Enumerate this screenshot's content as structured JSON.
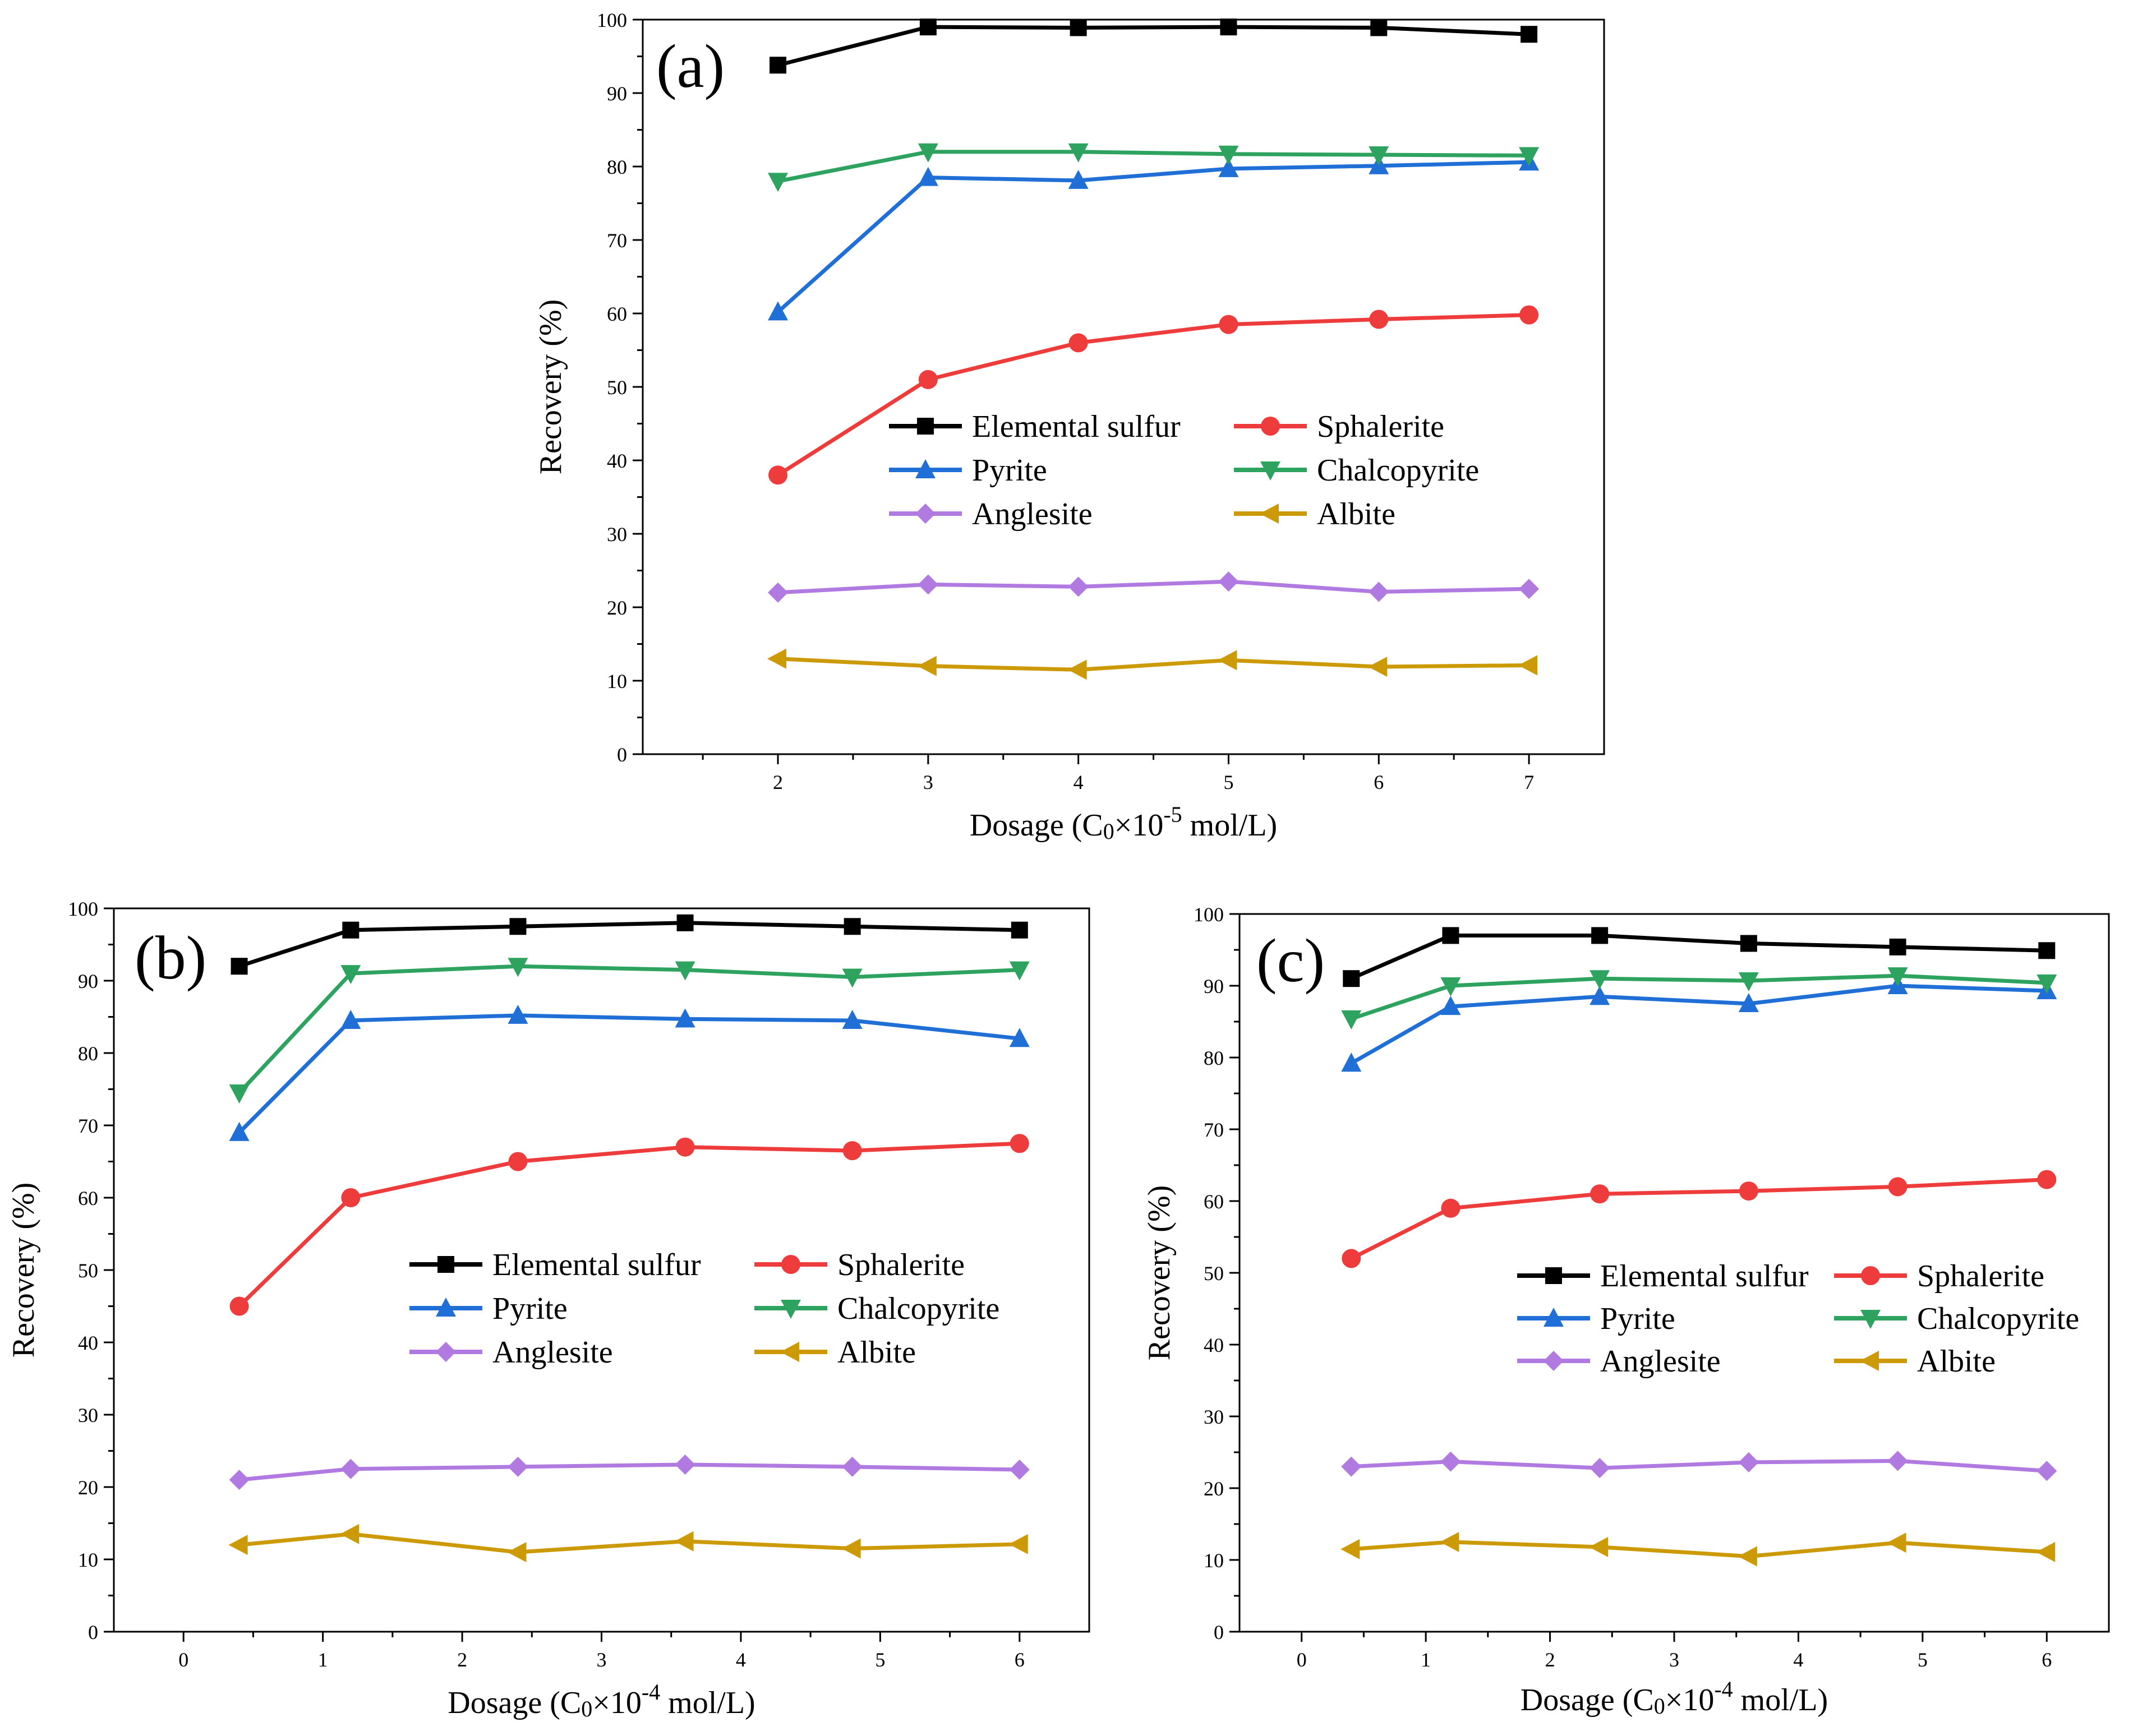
{
  "chart_data": [
    {
      "type": "line",
      "panel_label": "(a)",
      "xlabel": "Dosage (C0×10-5 mol/L)",
      "xlabel_parts": {
        "pre": "Dosage (C",
        "sub": "0",
        "mid": "×10",
        "sup": "-5",
        "post": " mol/L)"
      },
      "ylabel": "Recovery (%)",
      "xlim": [
        1.1,
        7.5
      ],
      "ylim": [
        0,
        100
      ],
      "xticks": [
        2,
        3,
        4,
        5,
        6,
        7
      ],
      "yticks": [
        0,
        10,
        20,
        30,
        40,
        50,
        60,
        70,
        80,
        90,
        100
      ],
      "x": [
        2,
        3,
        4,
        5,
        6,
        7
      ],
      "legend": "center",
      "grid": false,
      "series": [
        {
          "name": "Elemental sulfur",
          "marker": "square",
          "color": "#000000",
          "values": [
            93.8,
            99.0,
            98.9,
            99.0,
            98.9,
            98.0
          ]
        },
        {
          "name": "Sphalerite",
          "marker": "circle",
          "color": "#ee3b3b",
          "values": [
            38.0,
            51.0,
            56.0,
            58.5,
            59.2,
            59.8
          ]
        },
        {
          "name": "Pyrite",
          "marker": "triangle-up",
          "color": "#1f6fd6",
          "values": [
            60.2,
            78.5,
            78.1,
            79.7,
            80.1,
            80.6
          ]
        },
        {
          "name": "Chalcopyrite",
          "marker": "triangle-down",
          "color": "#2ea35f",
          "values": [
            78.0,
            82.0,
            82.0,
            81.7,
            81.6,
            81.5
          ]
        },
        {
          "name": "Anglesite",
          "marker": "diamond",
          "color": "#b07ae0",
          "values": [
            22.0,
            23.1,
            22.8,
            23.5,
            22.1,
            22.5
          ]
        },
        {
          "name": "Albite",
          "marker": "triangle-left",
          "color": "#cc9a06",
          "values": [
            13.0,
            12.0,
            11.5,
            12.8,
            11.9,
            12.1
          ]
        }
      ]
    },
    {
      "type": "line",
      "panel_label": "(b)",
      "xlabel": "Dosage (C0×10-4 mol/L)",
      "xlabel_parts": {
        "pre": "Dosage (C",
        "sub": "0",
        "mid": "×10",
        "sup": "-4",
        "post": " mol/L)"
      },
      "ylabel": "Recovery (%)",
      "xlim": [
        -0.5,
        6.5
      ],
      "ylim": [
        0,
        100
      ],
      "xticks": [
        0,
        1,
        2,
        3,
        4,
        5,
        6
      ],
      "yticks": [
        0,
        10,
        20,
        30,
        40,
        50,
        60,
        70,
        80,
        90,
        100
      ],
      "x": [
        0.4,
        1.2,
        2.4,
        3.6,
        4.8,
        6.0
      ],
      "legend": "center",
      "grid": false,
      "series": [
        {
          "name": "Elemental sulfur",
          "marker": "square",
          "color": "#000000",
          "values": [
            92.0,
            97.0,
            97.5,
            98.0,
            97.5,
            97.0
          ]
        },
        {
          "name": "Sphalerite",
          "marker": "circle",
          "color": "#ee3b3b",
          "values": [
            45.0,
            60.0,
            65.0,
            67.0,
            66.5,
            67.5
          ]
        },
        {
          "name": "Pyrite",
          "marker": "triangle-up",
          "color": "#1f6fd6",
          "values": [
            69.0,
            84.5,
            85.2,
            84.7,
            84.5,
            82.0
          ]
        },
        {
          "name": "Chalcopyrite",
          "marker": "triangle-down",
          "color": "#2ea35f",
          "values": [
            74.5,
            91.0,
            92.0,
            91.5,
            90.5,
            91.5
          ]
        },
        {
          "name": "Anglesite",
          "marker": "diamond",
          "color": "#b07ae0",
          "values": [
            21.0,
            22.5,
            22.8,
            23.1,
            22.8,
            22.4
          ]
        },
        {
          "name": "Albite",
          "marker": "triangle-left",
          "color": "#cc9a06",
          "values": [
            12.0,
            13.5,
            11.0,
            12.5,
            11.5,
            12.1
          ]
        }
      ]
    },
    {
      "type": "line",
      "panel_label": "(c)",
      "xlabel": "Dosage (C0×10-4 mol/L)",
      "xlabel_parts": {
        "pre": "Dosage (C",
        "sub": "0",
        "mid": "×10",
        "sup": "-4",
        "post": " mol/L)"
      },
      "ylabel": "Recovery (%)",
      "xlim": [
        -0.5,
        6.5
      ],
      "ylim": [
        0,
        100
      ],
      "xticks": [
        0,
        1,
        2,
        3,
        4,
        5,
        6
      ],
      "yticks": [
        0,
        10,
        20,
        30,
        40,
        50,
        60,
        70,
        80,
        90,
        100
      ],
      "x": [
        0.4,
        1.2,
        2.4,
        3.6,
        4.8,
        6.0
      ],
      "legend": "center",
      "grid": false,
      "series": [
        {
          "name": "Elemental sulfur",
          "marker": "square",
          "color": "#000000",
          "values": [
            91.0,
            97.0,
            97.0,
            95.9,
            95.4,
            94.9
          ]
        },
        {
          "name": "Sphalerite",
          "marker": "circle",
          "color": "#ee3b3b",
          "values": [
            52.0,
            59.0,
            61.0,
            61.4,
            62.0,
            63.0
          ]
        },
        {
          "name": "Pyrite",
          "marker": "triangle-up",
          "color": "#1f6fd6",
          "values": [
            79.2,
            87.1,
            88.5,
            87.5,
            90.0,
            89.3
          ]
        },
        {
          "name": "Chalcopyrite",
          "marker": "triangle-down",
          "color": "#2ea35f",
          "values": [
            85.4,
            90.0,
            91.0,
            90.7,
            91.4,
            90.4
          ]
        },
        {
          "name": "Anglesite",
          "marker": "diamond",
          "color": "#b07ae0",
          "values": [
            23.0,
            23.7,
            22.8,
            23.6,
            23.8,
            22.4
          ]
        },
        {
          "name": "Albite",
          "marker": "triangle-left",
          "color": "#cc9a06",
          "values": [
            11.5,
            12.5,
            11.8,
            10.5,
            12.4,
            11.1
          ]
        }
      ]
    }
  ]
}
